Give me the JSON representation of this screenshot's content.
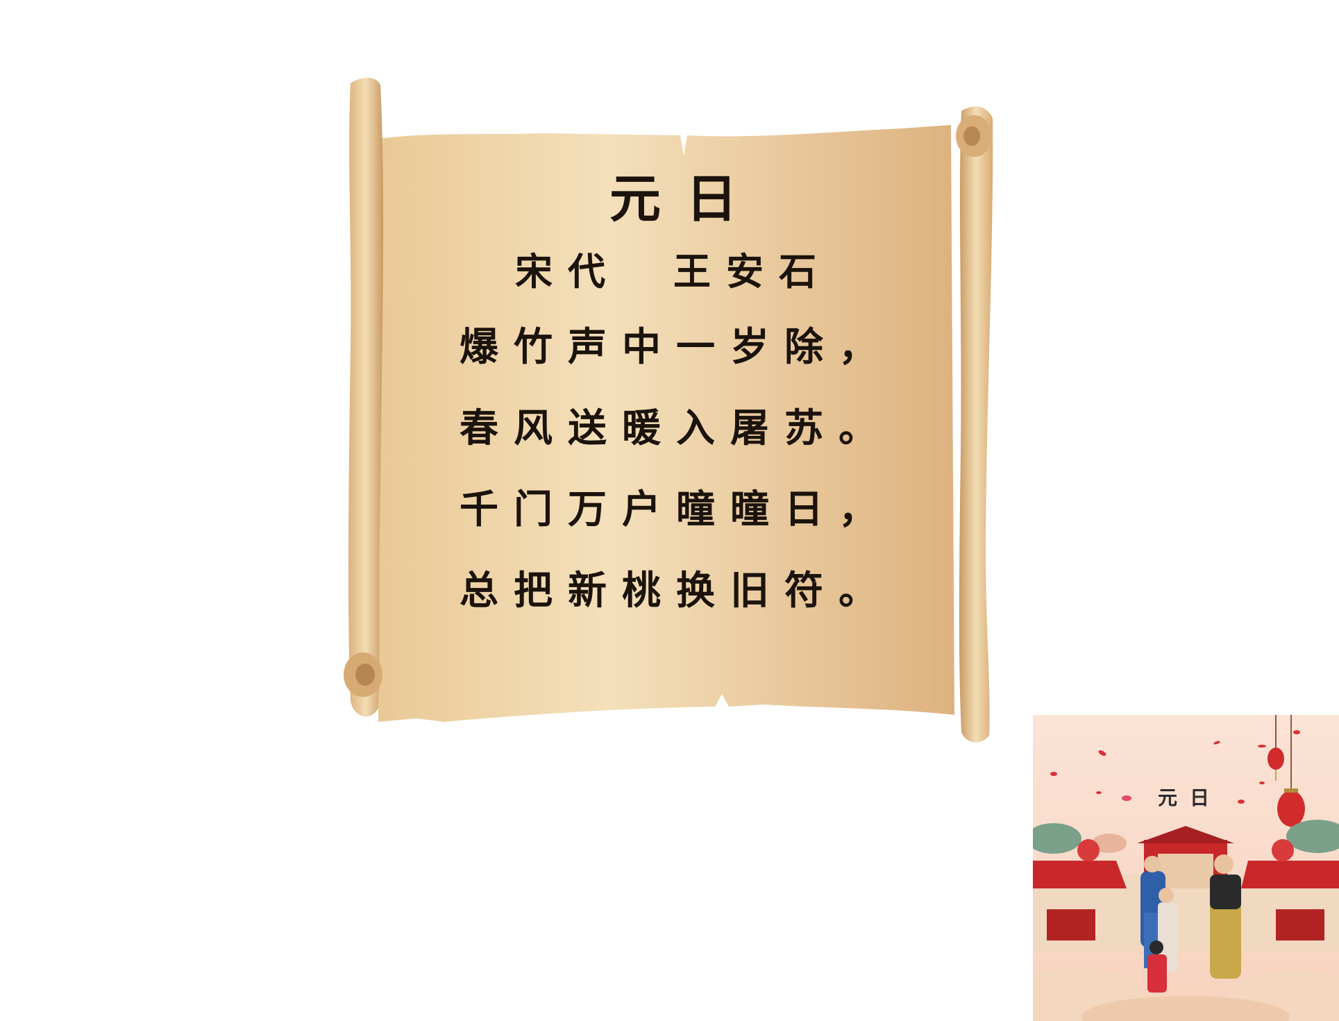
{
  "poem": {
    "title": "元日",
    "author_line": "宋代　王安石",
    "lines": [
      "爆竹声中一岁除，",
      "春风送暖入屠苏。",
      "千门万户曈曈日，",
      "总把新桃换旧符。"
    ]
  },
  "thumbnail": {
    "title": "元日"
  },
  "colors": {
    "parchment_light": "#f2dcb3",
    "parchment_dark": "#dcb07d",
    "ink": "#1b130c",
    "festive_red": "#c8282a"
  }
}
